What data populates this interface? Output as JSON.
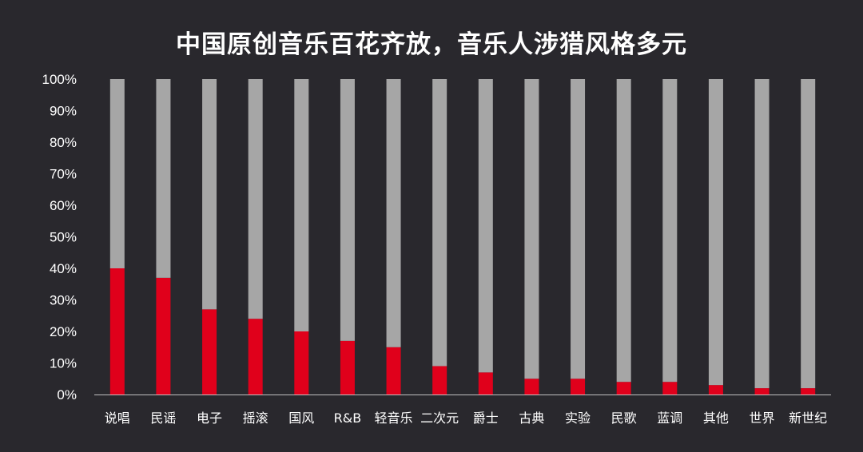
{
  "chart_data": {
    "type": "bar",
    "stacked": true,
    "title": "中国原创音乐百花齐放，音乐人涉猎风格多元",
    "categories": [
      "说唱",
      "民谣",
      "电子",
      "摇滚",
      "国风",
      "R&B",
      "轻音乐",
      "二次元",
      "爵士",
      "古典",
      "实验",
      "民歌",
      "蓝调",
      "其他",
      "世界",
      "新世纪"
    ],
    "series": [
      {
        "color": "#e0001b",
        "values": [
          40,
          37,
          27,
          24,
          20,
          17,
          15,
          9,
          7,
          5,
          5,
          4,
          4,
          3,
          2,
          2
        ]
      },
      {
        "color": "#a6a6a6",
        "values": [
          60,
          63,
          73,
          76,
          80,
          83,
          85,
          91,
          93,
          95,
          95,
          96,
          96,
          97,
          98,
          98
        ]
      }
    ],
    "yticks": [
      "0%",
      "10%",
      "20%",
      "30%",
      "40%",
      "50%",
      "60%",
      "70%",
      "80%",
      "90%",
      "100%"
    ],
    "ylim": [
      0,
      100
    ],
    "xlabel": "",
    "ylabel": "",
    "grid": false,
    "legend": "none",
    "background_color": "#29282d",
    "axis_color": "#bfbfbf"
  }
}
